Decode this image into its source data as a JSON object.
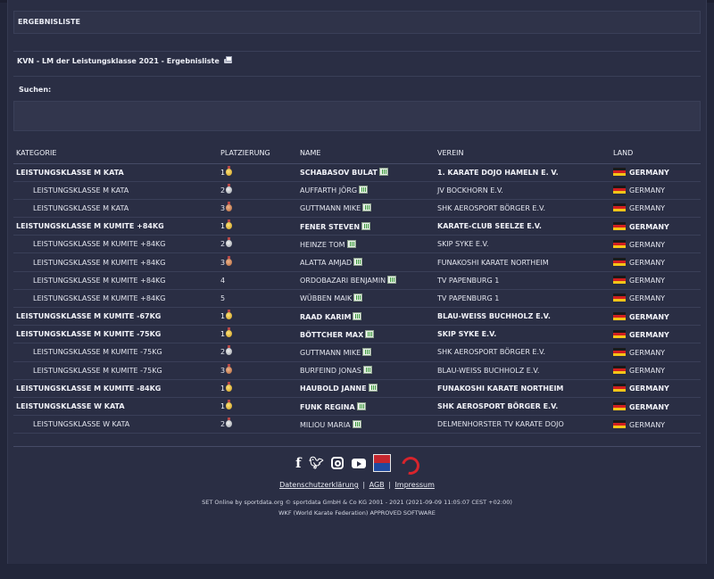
{
  "page": {
    "section_title": "ERGEBNISLISTE",
    "event_title": "KVN - LM der Leistungsklasse 2021 - Ergebnisliste",
    "search_label": "Suchen:"
  },
  "table": {
    "headers": [
      "KATEGORIE",
      "PLATZIERUNG",
      "NAME",
      "VEREIN",
      "LAND"
    ],
    "rows": [
      {
        "category": "LEISTUNGSKLASSE M KATA",
        "place": "1",
        "medal": "gold",
        "name": "SCHABASOV BULAT",
        "club": "1. KARATE DOJO HAMELN E. V.",
        "country": "GERMANY",
        "bold": true
      },
      {
        "category": "LEISTUNGSKLASSE M KATA",
        "place": "2",
        "medal": "silver",
        "name": "AUFFARTH JÖRG",
        "club": "JV BOCKHORN E.V.",
        "country": "GERMANY",
        "bold": false
      },
      {
        "category": "LEISTUNGSKLASSE M KATA",
        "place": "3",
        "medal": "bronze",
        "name": "GUTTMANN MIKE",
        "club": "SHK AEROSPORT BÖRGER E.V.",
        "country": "GERMANY",
        "bold": false
      },
      {
        "category": "LEISTUNGSKLASSE M KUMITE +84KG",
        "place": "1",
        "medal": "gold",
        "name": "FENER STEVEN",
        "club": "KARATE-CLUB SEELZE E.V.",
        "country": "GERMANY",
        "bold": true
      },
      {
        "category": "LEISTUNGSKLASSE M KUMITE +84KG",
        "place": "2",
        "medal": "silver",
        "name": "HEINZE TOM",
        "club": "SKIP SYKE E.V.",
        "country": "GERMANY",
        "bold": false
      },
      {
        "category": "LEISTUNGSKLASSE M KUMITE +84KG",
        "place": "3",
        "medal": "bronze",
        "name": "ALATTA AMJAD",
        "club": "FUNAKOSHI KARATE NORTHEIM",
        "country": "GERMANY",
        "bold": false
      },
      {
        "category": "LEISTUNGSKLASSE M KUMITE +84KG",
        "place": "4",
        "medal": "",
        "name": "ORDOBAZARI BENJAMIN",
        "club": "TV PAPENBURG 1",
        "country": "GERMANY",
        "bold": false
      },
      {
        "category": "LEISTUNGSKLASSE M KUMITE +84KG",
        "place": "5",
        "medal": "",
        "name": "WÜBBEN MAIK",
        "club": "TV PAPENBURG 1",
        "country": "GERMANY",
        "bold": false
      },
      {
        "category": "LEISTUNGSKLASSE M KUMITE -67KG",
        "place": "1",
        "medal": "gold",
        "name": "RAAD KARIM",
        "club": "BLAU-WEISS BUCHHOLZ E.V.",
        "country": "GERMANY",
        "bold": true
      },
      {
        "category": "LEISTUNGSKLASSE M KUMITE -75KG",
        "place": "1",
        "medal": "gold",
        "name": "BÖTTCHER MAX",
        "club": "SKIP SYKE E.V.",
        "country": "GERMANY",
        "bold": true
      },
      {
        "category": "LEISTUNGSKLASSE M KUMITE -75KG",
        "place": "2",
        "medal": "silver",
        "name": "GUTTMANN MIKE",
        "club": "SHK AEROSPORT BÖRGER E.V.",
        "country": "GERMANY",
        "bold": false
      },
      {
        "category": "LEISTUNGSKLASSE M KUMITE -75KG",
        "place": "3",
        "medal": "bronze",
        "name": "BURFEIND JONAS",
        "club": "BLAU-WEISS BUCHHOLZ E.V.",
        "country": "GERMANY",
        "bold": false
      },
      {
        "category": "LEISTUNGSKLASSE M KUMITE -84KG",
        "place": "1",
        "medal": "gold",
        "name": "HAUBOLD JANNE",
        "club": "FUNAKOSHI KARATE NORTHEIM",
        "country": "GERMANY",
        "bold": true
      },
      {
        "category": "LEISTUNGSKLASSE W KATA",
        "place": "1",
        "medal": "gold",
        "name": "FUNK REGINA",
        "club": "SHK AEROSPORT BÖRGER E.V.",
        "country": "GERMANY",
        "bold": true
      },
      {
        "category": "LEISTUNGSKLASSE W KATA",
        "place": "2",
        "medal": "silver",
        "name": "MILIOU MARIA",
        "club": "DELMENHORSTER TV KARATE DOJO",
        "country": "GERMANY",
        "bold": false
      }
    ]
  },
  "footer": {
    "social_icons": [
      "facebook-icon",
      "twitter-icon",
      "instagram-icon",
      "youtube-icon",
      "sportdata-logo",
      "wkf-logo"
    ],
    "links": [
      "Datenschutzerklärung",
      "AGB",
      "Impressum"
    ],
    "separator": "|",
    "copyright": "SET Online by sportdata.org © sportdata GmbH & Co KG 2001 - 2021 (2021-09-09 11:05:07 CEST +02:00)",
    "wkf_note": "WKF (World Karate Federation) APPROVED SOFTWARE"
  },
  "colors": {
    "background": "#22263a",
    "panel": "#2f3349",
    "text": "#e6e8f0"
  }
}
